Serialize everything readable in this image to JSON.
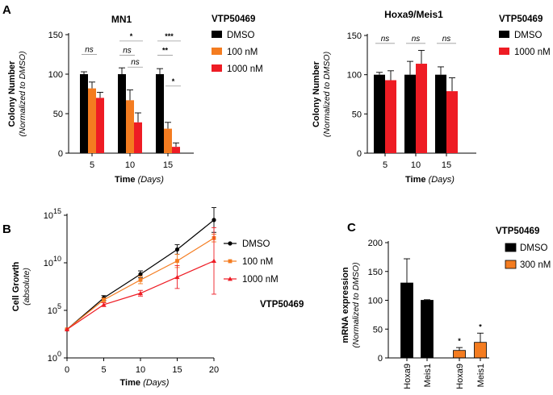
{
  "panels": {
    "A": "A",
    "B": "B",
    "C": "C"
  },
  "chart_data": [
    {
      "id": "A1",
      "type": "bar",
      "title": "MN1",
      "ylabel": "Colony Number",
      "ylabel_sub": "(Normalized to DMSO)",
      "xlabel": "Time",
      "xlabel_unit": "(Days)",
      "categories": [
        "5",
        "10",
        "15"
      ],
      "ylim": [
        0,
        150
      ],
      "yticks": [
        0,
        50,
        100,
        150
      ],
      "legend_title": "VTP50469",
      "series": [
        {
          "name": "DMSO",
          "color": "#000000",
          "values": [
            100,
            100,
            100
          ],
          "errors": [
            3,
            8,
            7
          ]
        },
        {
          "name": "100 nM",
          "color": "#f47c20",
          "values": [
            82,
            67,
            31
          ],
          "errors": [
            8,
            13,
            8
          ]
        },
        {
          "name": "1000 nM",
          "color": "#ee1c24",
          "values": [
            70,
            39,
            8
          ],
          "errors": [
            7,
            12,
            5
          ]
        }
      ],
      "annotations": [
        {
          "cat": 0,
          "from": 0,
          "to": 1,
          "label": "ns",
          "y": 128
        },
        {
          "cat": 1,
          "from": 0,
          "to": 2,
          "label": "*",
          "y": 145
        },
        {
          "cat": 1,
          "from": 0,
          "to": 1,
          "label": "ns",
          "y": 127
        },
        {
          "cat": 1,
          "from": 1,
          "to": 2,
          "label": "ns",
          "y": 112
        },
        {
          "cat": 2,
          "from": 0,
          "to": 2,
          "label": "***",
          "y": 145
        },
        {
          "cat": 2,
          "from": 0,
          "to": 1,
          "label": "**",
          "y": 127
        },
        {
          "cat": 2,
          "from": 1,
          "to": 2,
          "label": "*",
          "y": 88
        }
      ]
    },
    {
      "id": "A2",
      "type": "bar",
      "title": "Hoxa9/Meis1",
      "ylabel": "Colony Number",
      "ylabel_sub": "(Normalized to DMSO)",
      "xlabel": "Time",
      "xlabel_unit": "(Days)",
      "categories": [
        "5",
        "10",
        "15"
      ],
      "ylim": [
        0,
        150
      ],
      "yticks": [
        0,
        50,
        100,
        150
      ],
      "legend_title": "VTP50469",
      "series": [
        {
          "name": "DMSO",
          "color": "#000000",
          "values": [
            100,
            100,
            100
          ],
          "errors": [
            3,
            17,
            10
          ]
        },
        {
          "name": "1000 nM",
          "color": "#ee1c24",
          "values": [
            93,
            114,
            79
          ],
          "errors": [
            12,
            17,
            17
          ]
        }
      ],
      "annotations": [
        {
          "cat": 0,
          "label": "ns",
          "y": 143
        },
        {
          "cat": 1,
          "label": "ns",
          "y": 143
        },
        {
          "cat": 2,
          "label": "ns",
          "y": 143
        }
      ]
    },
    {
      "id": "B",
      "type": "line",
      "ylabel": "Cell Growth",
      "ylabel_sub": "(absolute)",
      "xlabel": "Time",
      "xlabel_unit": "(Days)",
      "x": [
        0,
        5,
        10,
        15,
        20
      ],
      "xticks": [
        "0",
        "5",
        "10",
        "15",
        "20"
      ],
      "yscale": "log10",
      "ylim_exp": [
        0,
        15
      ],
      "yticks": [
        {
          "base": "10",
          "exp": "0",
          "v": 0
        },
        {
          "base": "10",
          "exp": "5",
          "v": 5
        },
        {
          "base": "10",
          "exp": "10",
          "v": 10
        },
        {
          "base": "10",
          "exp": "15",
          "v": 15
        }
      ],
      "legend_title": "VTP50469",
      "series": [
        {
          "name": "DMSO",
          "color": "#000000",
          "marker": "circle",
          "log10_values": [
            3,
            6.3,
            8.8,
            11.4,
            14.5
          ],
          "log10_err": [
            0,
            0.25,
            0.35,
            0.5,
            1.3
          ]
        },
        {
          "name": "100 nM",
          "color": "#f47c20",
          "marker": "square",
          "log10_values": [
            3,
            6.1,
            8.2,
            10.2,
            12.6
          ],
          "log10_err": [
            0,
            0.2,
            0.4,
            0.7,
            0.4
          ]
        },
        {
          "name": "1000 nM",
          "color": "#ee1c24",
          "marker": "triangle",
          "log10_values": [
            3,
            5.6,
            6.8,
            8.5,
            10.2
          ],
          "log10_err": [
            0,
            0.2,
            0.3,
            1.2,
            3.5
          ]
        }
      ]
    },
    {
      "id": "C",
      "type": "bar",
      "ylabel": "mRNA expression",
      "ylabel_sub": "(Normalized to DMSO)",
      "ylim": [
        0,
        200
      ],
      "yticks": [
        0,
        50,
        100,
        150,
        200
      ],
      "legend_title": "VTP50469",
      "bars": [
        {
          "label": "Hoxa9",
          "series": "DMSO",
          "color": "#000000",
          "value": 130,
          "error": 42,
          "sig": ""
        },
        {
          "label": "Meis1",
          "series": "DMSO",
          "color": "#000000",
          "value": 100,
          "error": 1,
          "sig": ""
        },
        {
          "label": "Hoxa9",
          "series": "300 nM",
          "color": "#f47c20",
          "value": 13,
          "error": 5,
          "sig": "*"
        },
        {
          "label": "Meis1",
          "series": "300 nM",
          "color": "#f47c20",
          "value": 27,
          "error": 16,
          "sig": "*"
        }
      ],
      "legend": [
        {
          "name": "DMSO",
          "color": "#000000"
        },
        {
          "name": "300 nM",
          "color": "#f47c20"
        }
      ]
    }
  ]
}
